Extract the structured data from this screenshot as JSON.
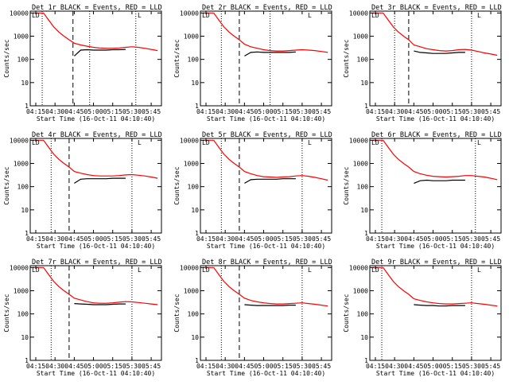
{
  "figure": {
    "xlabel": "Start Time (16-Oct-11 04:10:40)",
    "ylabel": "Counts/sec",
    "xtick_labels": [
      "04:15",
      "04:30",
      "04:45",
      "05:00",
      "05:15",
      "05:30",
      "05:45"
    ],
    "ytick_labels": [
      "1",
      "10",
      "100",
      "1000",
      "10000"
    ],
    "corner_label": "LD",
    "colors": {
      "events": "#000000",
      "lld": "#ff0000",
      "background": "#ffffff"
    }
  },
  "chart_data": [
    {
      "type": "line",
      "title": "Det 1r BLACK = Events, RED = LLD",
      "xlabel": "Start Time (16-Oct-11 04:10:40)",
      "ylabel": "Counts/sec",
      "yscale": "log",
      "ylim": [
        1,
        12000
      ],
      "xlim": [
        "04:10:40",
        "05:53:00"
      ],
      "xticks": [
        "04:15",
        "04:30",
        "04:45",
        "05:00",
        "05:15",
        "05:30",
        "05:45"
      ],
      "yticks": [
        1,
        10,
        100,
        1000,
        10000
      ],
      "x": [
        "04:13",
        "04:17",
        "04:21",
        "04:25",
        "04:29",
        "04:33",
        "04:37",
        "04:41",
        "04:45",
        "04:50",
        "04:55",
        "05:00",
        "05:05",
        "05:10",
        "05:15",
        "05:20",
        "05:25",
        "05:30",
        "05:35",
        "05:40",
        "05:45",
        "05:50"
      ],
      "series": [
        {
          "name": "LLD",
          "color": "#ff0000",
          "values": [
            10000,
            10000,
            10000,
            5000,
            2500,
            1500,
            1000,
            700,
            500,
            420,
            370,
            330,
            310,
            300,
            300,
            310,
            330,
            350,
            330,
            300,
            270,
            240
          ]
        },
        {
          "name": "Events",
          "color": "#000000",
          "values": [
            null,
            null,
            null,
            null,
            null,
            null,
            null,
            null,
            140,
            250,
            260,
            250,
            250,
            250,
            260,
            260,
            270,
            null,
            null,
            null,
            null,
            null
          ]
        }
      ],
      "vlines_dotted": [
        "04:20",
        "04:57",
        "05:33"
      ],
      "vlines_dashed": [
        "04:44"
      ]
    },
    {
      "type": "line",
      "title": "Det 2r BLACK = Events, RED = LLD",
      "xlabel": "Start Time (16-Oct-11 04:10:40)",
      "ylabel": "Counts/sec",
      "yscale": "log",
      "ylim": [
        1,
        12000
      ],
      "xlim": [
        "04:10:40",
        "05:53:00"
      ],
      "xticks": [
        "04:15",
        "04:30",
        "04:45",
        "05:00",
        "05:15",
        "05:30",
        "05:45"
      ],
      "yticks": [
        1,
        10,
        100,
        1000,
        10000
      ],
      "x": [
        "04:13",
        "04:17",
        "04:21",
        "04:25",
        "04:29",
        "04:33",
        "04:37",
        "04:41",
        "04:45",
        "04:50",
        "04:55",
        "05:00",
        "05:05",
        "05:10",
        "05:15",
        "05:20",
        "05:25",
        "05:30",
        "05:35",
        "05:40",
        "05:45",
        "05:50"
      ],
      "series": [
        {
          "name": "LLD",
          "color": "#ff0000",
          "values": [
            10000,
            10000,
            10000,
            5000,
            2500,
            1500,
            1000,
            700,
            450,
            350,
            300,
            260,
            240,
            230,
            230,
            240,
            250,
            260,
            250,
            240,
            220,
            200
          ]
        },
        {
          "name": "Events",
          "color": "#000000",
          "values": [
            null,
            null,
            null,
            null,
            null,
            null,
            null,
            null,
            140,
            200,
            210,
            200,
            200,
            200,
            200,
            200,
            210,
            null,
            null,
            null,
            null,
            null
          ]
        }
      ],
      "vlines_dotted": [
        "04:27",
        "05:05"
      ],
      "vlines_dashed": [
        "04:41"
      ]
    },
    {
      "type": "line",
      "title": "Det 3r BLACK = Events, RED = LLD",
      "xlabel": "Start Time (16-Oct-11 04:10:40)",
      "ylabel": "Counts/sec",
      "yscale": "log",
      "ylim": [
        1,
        12000
      ],
      "xlim": [
        "04:10:40",
        "05:53:00"
      ],
      "xticks": [
        "04:15",
        "04:30",
        "04:45",
        "05:00",
        "05:15",
        "05:30",
        "05:45"
      ],
      "yticks": [
        1,
        10,
        100,
        1000,
        10000
      ],
      "x": [
        "04:13",
        "04:17",
        "04:21",
        "04:25",
        "04:29",
        "04:33",
        "04:37",
        "04:41",
        "04:45",
        "04:50",
        "04:55",
        "05:00",
        "05:05",
        "05:10",
        "05:15",
        "05:20",
        "05:25",
        "05:30",
        "05:35",
        "05:40",
        "05:45",
        "05:50"
      ],
      "series": [
        {
          "name": "LLD",
          "color": "#ff0000",
          "values": [
            10000,
            10000,
            10000,
            5000,
            2500,
            1500,
            1000,
            700,
            420,
            350,
            290,
            260,
            240,
            230,
            240,
            260,
            270,
            250,
            220,
            190,
            170,
            150
          ]
        },
        {
          "name": "Events",
          "color": "#000000",
          "values": [
            null,
            null,
            null,
            null,
            null,
            null,
            null,
            null,
            230,
            200,
            190,
            180,
            180,
            180,
            190,
            200,
            200,
            null,
            null,
            null,
            null,
            null
          ]
        }
      ],
      "vlines_dotted": [
        "04:30",
        "05:30"
      ],
      "vlines_dashed": [
        "04:41"
      ]
    },
    {
      "type": "line",
      "title": "Det 4r BLACK = Events, RED = LLD",
      "xlabel": "Start Time (16-Oct-11 04:10:40)",
      "ylabel": "Counts/sec",
      "yscale": "log",
      "ylim": [
        1,
        12000
      ],
      "xlim": [
        "04:10:40",
        "05:53:00"
      ],
      "xticks": [
        "04:15",
        "04:30",
        "04:45",
        "05:00",
        "05:15",
        "05:30",
        "05:45"
      ],
      "yticks": [
        1,
        10,
        100,
        1000,
        10000
      ],
      "x": [
        "04:13",
        "04:17",
        "04:21",
        "04:25",
        "04:29",
        "04:33",
        "04:37",
        "04:41",
        "04:45",
        "04:50",
        "04:55",
        "05:00",
        "05:05",
        "05:10",
        "05:15",
        "05:20",
        "05:25",
        "05:30",
        "05:35",
        "05:40",
        "05:45",
        "05:50"
      ],
      "series": [
        {
          "name": "LLD",
          "color": "#ff0000",
          "values": [
            10000,
            10000,
            10000,
            5000,
            2500,
            1500,
            1000,
            700,
            450,
            380,
            330,
            300,
            290,
            290,
            290,
            300,
            320,
            330,
            310,
            290,
            260,
            230
          ]
        },
        {
          "name": "Events",
          "color": "#000000",
          "values": [
            null,
            null,
            null,
            null,
            null,
            null,
            null,
            null,
            140,
            210,
            220,
            220,
            220,
            220,
            230,
            230,
            230,
            null,
            null,
            null,
            null,
            null
          ]
        }
      ],
      "vlines_dotted": [
        "04:27",
        "05:30"
      ],
      "vlines_dashed": [
        "04:41"
      ]
    },
    {
      "type": "line",
      "title": "Det 5r BLACK = Events, RED = LLD",
      "xlabel": "Start Time (16-Oct-11 04:10:40)",
      "ylabel": "Counts/sec",
      "yscale": "log",
      "ylim": [
        1,
        12000
      ],
      "xlim": [
        "04:10:40",
        "05:53:00"
      ],
      "xticks": [
        "04:15",
        "04:30",
        "04:45",
        "05:00",
        "05:15",
        "05:30",
        "05:45"
      ],
      "yticks": [
        1,
        10,
        100,
        1000,
        10000
      ],
      "x": [
        "04:13",
        "04:17",
        "04:21",
        "04:25",
        "04:29",
        "04:33",
        "04:37",
        "04:41",
        "04:45",
        "04:50",
        "04:55",
        "05:00",
        "05:05",
        "05:10",
        "05:15",
        "05:20",
        "05:25",
        "05:30",
        "05:35",
        "05:40",
        "05:45",
        "05:50"
      ],
      "series": [
        {
          "name": "LLD",
          "color": "#ff0000",
          "values": [
            10000,
            10000,
            10000,
            5000,
            2500,
            1500,
            1000,
            700,
            450,
            360,
            300,
            270,
            260,
            250,
            260,
            270,
            290,
            300,
            280,
            250,
            220,
            190
          ]
        },
        {
          "name": "Events",
          "color": "#000000",
          "values": [
            null,
            null,
            null,
            null,
            null,
            null,
            null,
            null,
            140,
            200,
            210,
            210,
            210,
            210,
            220,
            220,
            220,
            null,
            null,
            null,
            null,
            null
          ]
        }
      ],
      "vlines_dotted": [
        "04:27",
        "05:30"
      ],
      "vlines_dashed": [
        "04:41"
      ]
    },
    {
      "type": "line",
      "title": "Det 6r BLACK = Events, RED = LLD",
      "xlabel": "Start Time (16-Oct-11 04:10:40)",
      "ylabel": "Counts/sec",
      "yscale": "log",
      "ylim": [
        1,
        12000
      ],
      "xlim": [
        "04:10:40",
        "05:53:00"
      ],
      "xticks": [
        "04:15",
        "04:30",
        "04:45",
        "05:00",
        "05:15",
        "05:30",
        "05:45"
      ],
      "yticks": [
        1,
        10,
        100,
        1000,
        10000
      ],
      "x": [
        "04:13",
        "04:17",
        "04:21",
        "04:25",
        "04:29",
        "04:33",
        "04:37",
        "04:41",
        "04:45",
        "04:50",
        "04:55",
        "05:00",
        "05:05",
        "05:10",
        "05:15",
        "05:20",
        "05:25",
        "05:30",
        "05:35",
        "05:40",
        "05:45",
        "05:50"
      ],
      "series": [
        {
          "name": "LLD",
          "color": "#ff0000",
          "values": [
            10000,
            10000,
            10000,
            5000,
            2500,
            1500,
            1000,
            700,
            450,
            360,
            310,
            280,
            270,
            260,
            270,
            280,
            300,
            300,
            280,
            260,
            230,
            200
          ]
        },
        {
          "name": "Events",
          "color": "#000000",
          "values": [
            null,
            null,
            null,
            null,
            null,
            null,
            null,
            null,
            140,
            180,
            190,
            180,
            180,
            180,
            190,
            190,
            190,
            null,
            null,
            null,
            null,
            null
          ]
        }
      ],
      "vlines_dotted": [
        "04:20",
        "05:33"
      ],
      "vlines_dashed": []
    },
    {
      "type": "line",
      "title": "Det 7r BLACK = Events, RED = LLD",
      "xlabel": "Start Time (16-Oct-11 04:10:40)",
      "ylabel": "Counts/sec",
      "yscale": "log",
      "ylim": [
        1,
        12000
      ],
      "xlim": [
        "04:10:40",
        "05:53:00"
      ],
      "xticks": [
        "04:15",
        "04:30",
        "04:45",
        "05:00",
        "05:15",
        "05:30",
        "05:45"
      ],
      "yticks": [
        1,
        10,
        100,
        1000,
        10000
      ],
      "x": [
        "04:13",
        "04:17",
        "04:21",
        "04:25",
        "04:29",
        "04:33",
        "04:37",
        "04:41",
        "04:45",
        "04:50",
        "04:55",
        "05:00",
        "05:05",
        "05:10",
        "05:15",
        "05:20",
        "05:25",
        "05:30",
        "05:35",
        "05:40",
        "05:45",
        "05:50"
      ],
      "series": [
        {
          "name": "LLD",
          "color": "#ff0000",
          "values": [
            10000,
            10000,
            10000,
            5000,
            2500,
            1500,
            1000,
            700,
            480,
            400,
            340,
            300,
            290,
            290,
            300,
            320,
            340,
            330,
            310,
            290,
            270,
            250
          ]
        },
        {
          "name": "Events",
          "color": "#000000",
          "values": [
            null,
            null,
            null,
            null,
            null,
            null,
            null,
            null,
            280,
            270,
            260,
            250,
            250,
            250,
            260,
            270,
            270,
            null,
            null,
            null,
            null,
            null
          ]
        }
      ],
      "vlines_dotted": [
        "04:27",
        "05:30"
      ],
      "vlines_dashed": [
        "04:41"
      ]
    },
    {
      "type": "line",
      "title": "Det 8r BLACK = Events, RED = LLD",
      "xlabel": "Start Time (16-Oct-11 04:10:40)",
      "ylabel": "Counts/sec",
      "yscale": "log",
      "ylim": [
        1,
        12000
      ],
      "xlim": [
        "04:10:40",
        "05:53:00"
      ],
      "xticks": [
        "04:15",
        "04:30",
        "04:45",
        "05:00",
        "05:15",
        "05:30",
        "05:45"
      ],
      "yticks": [
        1,
        10,
        100,
        1000,
        10000
      ],
      "x": [
        "04:13",
        "04:17",
        "04:21",
        "04:25",
        "04:29",
        "04:33",
        "04:37",
        "04:41",
        "04:45",
        "04:50",
        "04:55",
        "05:00",
        "05:05",
        "05:10",
        "05:15",
        "05:20",
        "05:25",
        "05:30",
        "05:35",
        "05:40",
        "05:45",
        "05:50"
      ],
      "series": [
        {
          "name": "LLD",
          "color": "#ff0000",
          "values": [
            10000,
            10000,
            10000,
            5000,
            2500,
            1500,
            1000,
            700,
            480,
            380,
            330,
            300,
            280,
            270,
            270,
            280,
            290,
            300,
            280,
            260,
            240,
            220
          ]
        },
        {
          "name": "Events",
          "color": "#000000",
          "values": [
            null,
            null,
            null,
            null,
            null,
            null,
            null,
            null,
            250,
            240,
            230,
            230,
            230,
            230,
            230,
            240,
            240,
            null,
            null,
            null,
            null,
            null
          ]
        }
      ],
      "vlines_dotted": [
        "04:27",
        "05:30"
      ],
      "vlines_dashed": [
        "04:41"
      ]
    },
    {
      "type": "line",
      "title": "Det 9r BLACK = Events, RED = LLD",
      "xlabel": "Start Time (16-Oct-11 04:10:40)",
      "ylabel": "Counts/sec",
      "yscale": "log",
      "ylim": [
        1,
        12000
      ],
      "xlim": [
        "04:10:40",
        "05:53:00"
      ],
      "xticks": [
        "04:15",
        "04:30",
        "04:45",
        "05:00",
        "05:15",
        "05:30",
        "05:45"
      ],
      "yticks": [
        1,
        10,
        100,
        1000,
        10000
      ],
      "x": [
        "04:13",
        "04:17",
        "04:21",
        "04:25",
        "04:29",
        "04:33",
        "04:37",
        "04:41",
        "04:45",
        "04:50",
        "04:55",
        "05:00",
        "05:05",
        "05:10",
        "05:15",
        "05:20",
        "05:25",
        "05:30",
        "05:35",
        "05:40",
        "05:45",
        "05:50"
      ],
      "series": [
        {
          "name": "LLD",
          "color": "#ff0000",
          "values": [
            10000,
            10000,
            10000,
            5000,
            2500,
            1500,
            1000,
            700,
            450,
            380,
            330,
            300,
            280,
            270,
            270,
            280,
            290,
            300,
            280,
            260,
            240,
            220
          ]
        },
        {
          "name": "Events",
          "color": "#000000",
          "values": [
            null,
            null,
            null,
            null,
            null,
            null,
            null,
            null,
            250,
            240,
            230,
            230,
            220,
            220,
            230,
            230,
            230,
            null,
            null,
            null,
            null,
            null
          ]
        }
      ],
      "vlines_dotted": [
        "04:20",
        "05:30"
      ],
      "vlines_dashed": []
    }
  ]
}
